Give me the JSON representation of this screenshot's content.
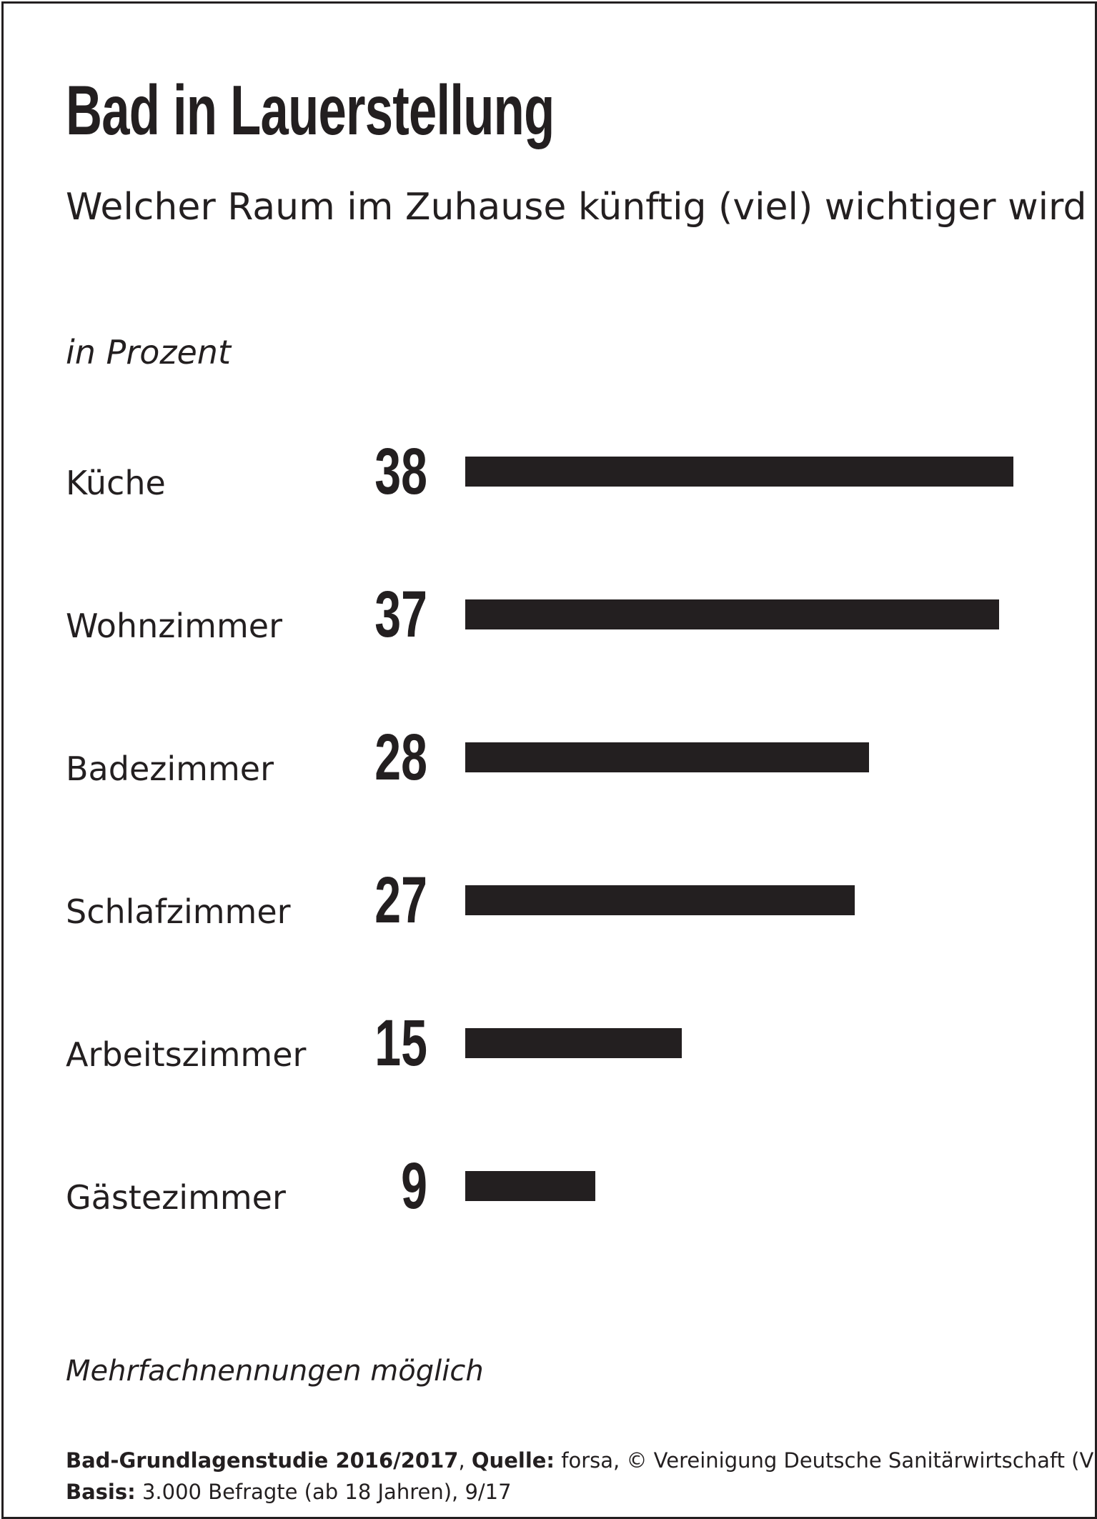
{
  "title": "Bad in Lauerstellung",
  "subtitle": "Welcher Raum im Zuhause künftig (viel) wichtiger wird",
  "unit_label": "in Prozent",
  "footnote": "Mehrfachnennungen möglich",
  "source": {
    "study_label": "Bad-Grundlagenstudie 2016/2017",
    "study_sep": ", ",
    "source_label": "Quelle:",
    "source_text": " forsa, © Vereinigung Deutsche Sanitärwirtschaft (VDS),",
    "basis_label": "Basis:",
    "basis_text": " 3.000 Befragte (ab 18 Jahren), 9/17"
  },
  "colors": {
    "ink": "#231f20",
    "background": "#ffffff"
  },
  "chart_data": {
    "type": "bar",
    "orientation": "horizontal",
    "categories": [
      "Küche",
      "Wohnzimmer",
      "Badezimmer",
      "Schlafzimmer",
      "Arbeitszimmer",
      "Gästezimmer"
    ],
    "values": [
      38,
      37,
      28,
      27,
      15,
      9
    ],
    "value_labels": [
      "38",
      "37",
      "28",
      "27",
      "15",
      "9"
    ],
    "xlim": [
      0,
      38
    ],
    "grid": false,
    "legend": "none"
  }
}
